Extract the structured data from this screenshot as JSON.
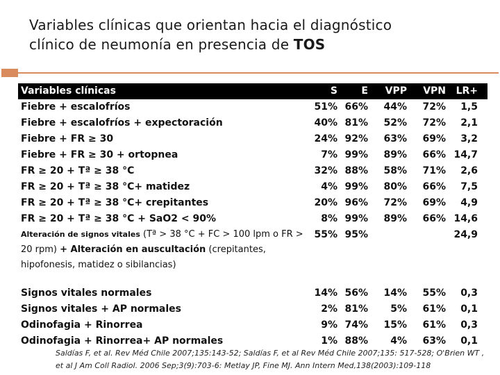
{
  "title": {
    "line1": "Variables clínicas que orientan hacia el diagnóstico",
    "line2": "clínico de neumonía en presencia de",
    "emphasis": "TOS"
  },
  "colors": {
    "accent": "#d98b5e",
    "header_bg": "#000000",
    "header_text": "#ffffff"
  },
  "table": {
    "headers": {
      "label": "Variables clínicas",
      "s": "S",
      "e": "E",
      "vpp": "VPP",
      "vpn": "VPN",
      "lr": "LR+"
    },
    "rows": [
      {
        "label": "Fiebre + escalofríos",
        "s": "51%",
        "e": "66%",
        "vpp": "44%",
        "vpn": "72%",
        "lr": "1,5"
      },
      {
        "label": "Fiebre + escalofríos + expectoración",
        "s": "40%",
        "e": "81%",
        "vpp": "52%",
        "vpn": "72%",
        "lr": "2,1"
      },
      {
        "label": "Fiebre + FR ≥ 30",
        "s": "24%",
        "e": "92%",
        "vpp": "63%",
        "vpn": "69%",
        "lr": "3,2"
      },
      {
        "label": "Fiebre + FR ≥ 30 + ortopnea",
        "s": "7%",
        "e": "99%",
        "vpp": "89%",
        "vpn": "66%",
        "lr": "14,7"
      },
      {
        "label": "FR ≥ 20 + Tª ≥ 38 °C",
        "s": "32%",
        "e": "88%",
        "vpp": "58%",
        "vpn": "71%",
        "lr": "2,6"
      },
      {
        "label": "FR ≥ 20  + Tª ≥ 38 °C+ matidez",
        "s": "4%",
        "e": "99%",
        "vpp": "80%",
        "vpn": "66%",
        "lr": "7,5"
      },
      {
        "label": "FR ≥ 20 + Tª ≥ 38 °C+ crepitantes",
        "s": "20%",
        "e": "96%",
        "vpp": "72%",
        "vpn": "69%",
        "lr": "4,9"
      },
      {
        "label": "FR ≥ 20 + Tª ≥ 38 °C + SaO2 < 90%",
        "s": "8%",
        "e": "99%",
        "vpp": "89%",
        "vpn": "66%",
        "lr": "14,6"
      }
    ],
    "multi_row": {
      "part1": "Alteración de signos vitales",
      "part2": " (Tª > 38 °C + FC > 100 lpm o FR > 20 rpm) ",
      "part3": "+ Alteración en auscultación",
      "part4": " (crepitantes, hipofonesis, matidez o sibilancias)",
      "s": "55%",
      "e": "95%",
      "vpp": "",
      "vpn": "",
      "lr": "24,9"
    },
    "rows2": [
      {
        "label": "Signos vitales normales",
        "s": "14%",
        "e": "56%",
        "vpp": "14%",
        "vpn": "55%",
        "lr": "0,3"
      },
      {
        "label": "Signos vitales + AP normales",
        "s": "2%",
        "e": "81%",
        "vpp": "5%",
        "vpn": "61%",
        "lr": "0,1"
      },
      {
        "label": "Odinofagia + Rinorrea",
        "s": "9%",
        "e": "74%",
        "vpp": "15%",
        "vpn": "61%",
        "lr": "0,3"
      },
      {
        "label": "Odinofagia + Rinorrea+ AP normales",
        "s": "1%",
        "e": "88%",
        "vpp": "4%",
        "vpn": "63%",
        "lr": "0,1"
      }
    ]
  },
  "footnote": "Saldías F, et al. Rev Méd Chile 2007;135:143-52; Saldías F, et al Rev Méd Chile 2007;135: 517-528;     O'Brien WT , et al J Am Coll Radiol. 2006 Sep;3(9):703-6: Metlay JP, Fine MJ. Ann Intern Med,138(2003):109-118"
}
